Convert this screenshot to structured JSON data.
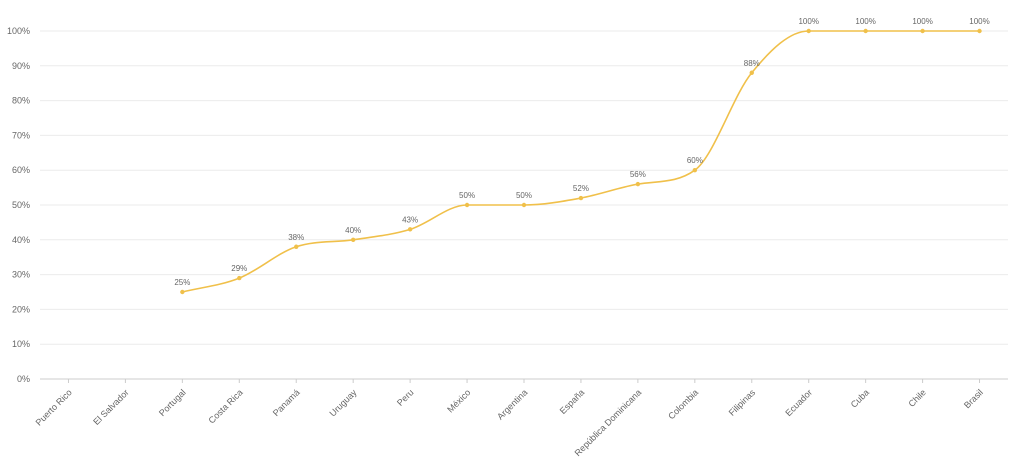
{
  "chart_data": {
    "type": "line",
    "categories": [
      "Puerto Rico",
      "El Salvador",
      "Portugal",
      "Costa Rica",
      "Panamá",
      "Uruguay",
      "Peru",
      "México",
      "Argentina",
      "España",
      "República Dominicana",
      "Colombia",
      "Filipinas",
      "Ecuador",
      "Cuba",
      "Chile",
      "Brasil"
    ],
    "series": [
      {
        "values": [
          null,
          null,
          25,
          29,
          38,
          40,
          43,
          50,
          50,
          52,
          56,
          60,
          88,
          100,
          100,
          100,
          100
        ]
      }
    ],
    "data_labels": [
      "",
      "",
      "25%",
      "29%",
      "38%",
      "40%",
      "43%",
      "50%",
      "50%",
      "52%",
      "56%",
      "60%",
      "88%",
      "100%",
      "100%",
      "100%",
      "100%"
    ],
    "y_ticks": [
      "0%",
      "10%",
      "20%",
      "30%",
      "40%",
      "50%",
      "60%",
      "70%",
      "80%",
      "90%",
      "100%"
    ],
    "ylim": [
      0,
      100
    ],
    "line_color": "#f0c04a",
    "grid": true,
    "title": "",
    "xlabel": "",
    "ylabel": ""
  }
}
